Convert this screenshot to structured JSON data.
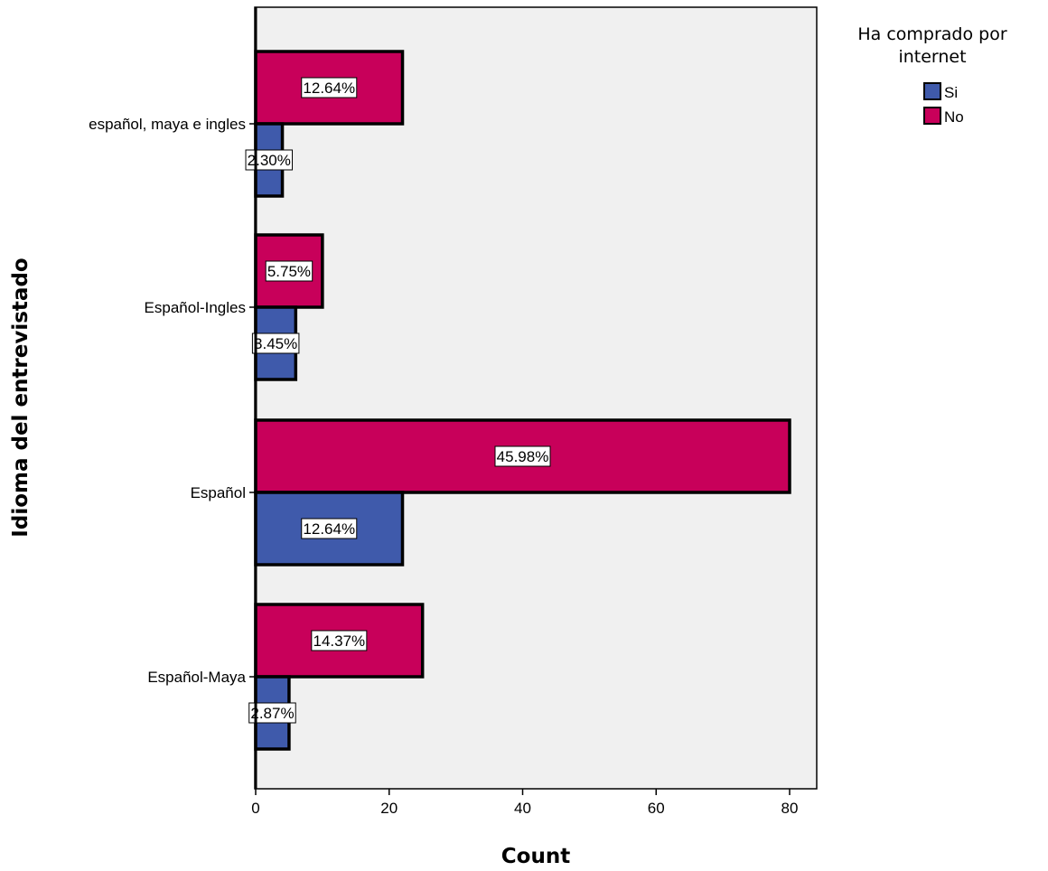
{
  "chart_data": {
    "type": "bar",
    "orientation": "horizontal",
    "categories": [
      "español, maya e ingles",
      "Español-Ingles",
      "Español",
      "Español-Maya"
    ],
    "series": [
      {
        "name": "Si",
        "values": [
          4,
          6,
          22,
          5
        ],
        "labels": [
          "2.30%",
          "3.45%",
          "12.64%",
          "2.87%"
        ],
        "color": "#3f5aab"
      },
      {
        "name": "No",
        "values": [
          22,
          10,
          80,
          25
        ],
        "labels": [
          "12.64%",
          "5.75%",
          "45.98%",
          "14.37%"
        ],
        "color": "#c8005a"
      }
    ],
    "xlabel": "Count",
    "ylabel": "Idioma del entrevistado",
    "xlim": [
      0,
      84
    ],
    "xticks": [
      0,
      20,
      40,
      60,
      80
    ],
    "legend": {
      "title": "Ha comprado por internet",
      "title_lines": [
        "Ha comprado por",
        "internet"
      ],
      "position": "top-right"
    },
    "plot_background": "#f0f0f0",
    "grid": false
  }
}
